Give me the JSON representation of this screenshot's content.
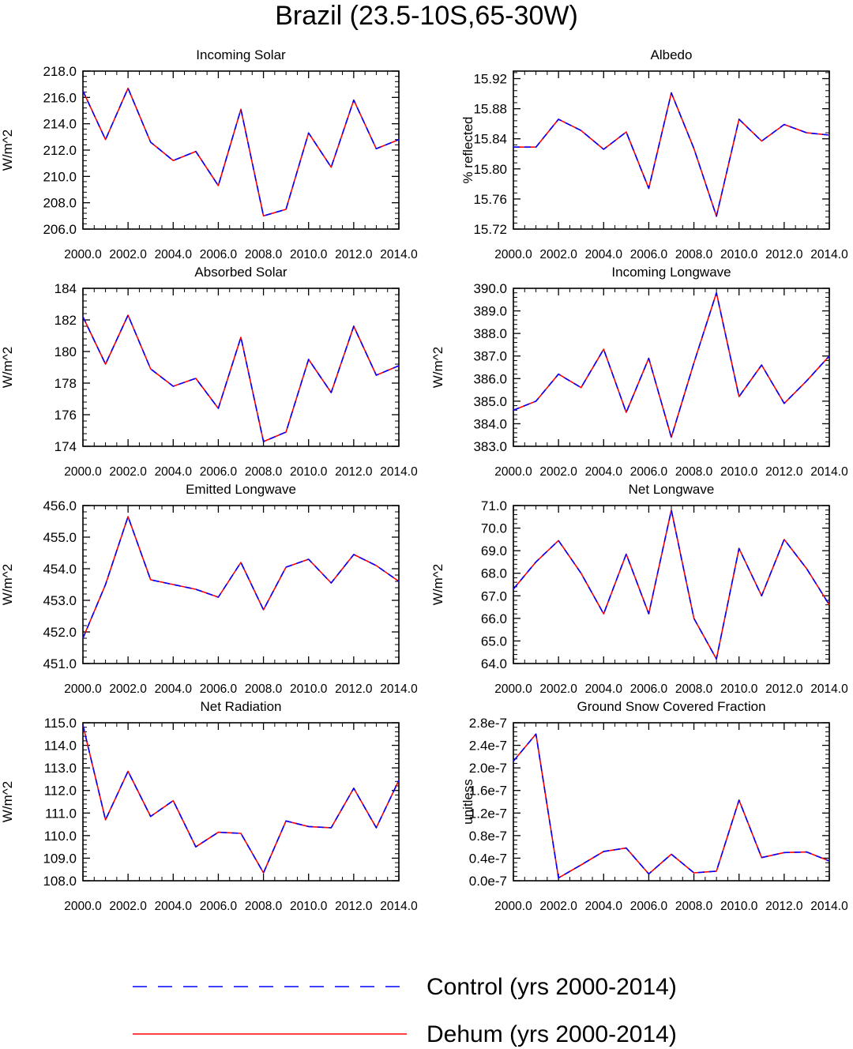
{
  "title": "Brazil (23.5-10S,65-30W)",
  "legend": [
    {
      "label": "Control (yrs 2000-2014)",
      "color": "#0000ff",
      "style": "dashed"
    },
    {
      "label": "Dehum (yrs 2000-2014)",
      "color": "#ff0000",
      "style": "solid"
    }
  ],
  "chart_data": [
    {
      "type": "line",
      "title": "Incoming Solar",
      "ylabel": "W/m^2",
      "x": [
        2000,
        2001,
        2002,
        2003,
        2004,
        2005,
        2006,
        2007,
        2008,
        2009,
        2010,
        2011,
        2012,
        2013,
        2014
      ],
      "xlim": [
        2000,
        2014
      ],
      "xticks": [
        "2000.0",
        "2002.0",
        "2004.0",
        "2006.0",
        "2008.0",
        "2010.0",
        "2012.0",
        "2014.0"
      ],
      "ylim": [
        206.0,
        218.0
      ],
      "yticks": [
        "206.0",
        "208.0",
        "210.0",
        "212.0",
        "214.0",
        "216.0",
        "218.0"
      ],
      "series": [
        {
          "name": "Control (yrs 2000-2014)",
          "values": [
            216.5,
            212.8,
            216.7,
            212.6,
            211.2,
            211.9,
            209.3,
            215.1,
            207.0,
            207.5,
            213.3,
            210.7,
            215.8,
            212.1,
            212.8
          ]
        },
        {
          "name": "Dehum (yrs 2000-2014)",
          "values": [
            216.5,
            212.8,
            216.7,
            212.6,
            211.2,
            211.9,
            209.3,
            215.1,
            207.0,
            207.5,
            213.3,
            210.7,
            215.8,
            212.1,
            212.8
          ]
        }
      ]
    },
    {
      "type": "line",
      "title": "Albedo",
      "ylabel": "% reflected",
      "x": [
        2000,
        2001,
        2002,
        2003,
        2004,
        2005,
        2006,
        2007,
        2008,
        2009,
        2010,
        2011,
        2012,
        2013,
        2014
      ],
      "xlim": [
        2000,
        2014
      ],
      "xticks": [
        "2000.0",
        "2002.0",
        "2004.0",
        "2006.0",
        "2008.0",
        "2010.0",
        "2012.0",
        "2014.0"
      ],
      "ylim": [
        15.72,
        15.93
      ],
      "yticks": [
        "15.72",
        "15.76",
        "15.80",
        "15.84",
        "15.88",
        "15.92"
      ],
      "series": [
        {
          "name": "Control (yrs 2000-2014)",
          "values": [
            15.829,
            15.829,
            15.866,
            15.851,
            15.826,
            15.849,
            15.774,
            15.901,
            15.827,
            15.737,
            15.866,
            15.837,
            15.859,
            15.848,
            15.845
          ]
        },
        {
          "name": "Dehum (yrs 2000-2014)",
          "values": [
            15.829,
            15.829,
            15.866,
            15.851,
            15.826,
            15.849,
            15.774,
            15.901,
            15.827,
            15.737,
            15.866,
            15.837,
            15.859,
            15.848,
            15.845
          ]
        }
      ]
    },
    {
      "type": "line",
      "title": "Absorbed Solar",
      "ylabel": "W/m^2",
      "x": [
        2000,
        2001,
        2002,
        2003,
        2004,
        2005,
        2006,
        2007,
        2008,
        2009,
        2010,
        2011,
        2012,
        2013,
        2014
      ],
      "xlim": [
        2000,
        2014
      ],
      "xticks": [
        "2000.0",
        "2002.0",
        "2004.0",
        "2006.0",
        "2008.0",
        "2010.0",
        "2012.0",
        "2014.0"
      ],
      "ylim": [
        174,
        184
      ],
      "yticks": [
        "174",
        "176",
        "178",
        "180",
        "182",
        "184"
      ],
      "series": [
        {
          "name": "Control (yrs 2000-2014)",
          "values": [
            182.2,
            179.2,
            182.3,
            178.9,
            177.8,
            178.3,
            176.4,
            180.9,
            174.3,
            174.9,
            179.5,
            177.4,
            181.6,
            178.5,
            179.1
          ]
        },
        {
          "name": "Dehum (yrs 2000-2014)",
          "values": [
            182.2,
            179.2,
            182.3,
            178.9,
            177.8,
            178.3,
            176.4,
            180.9,
            174.3,
            174.9,
            179.5,
            177.4,
            181.6,
            178.5,
            179.1
          ]
        }
      ]
    },
    {
      "type": "line",
      "title": "Incoming Longwave",
      "ylabel": "W/m^2",
      "x": [
        2000,
        2001,
        2002,
        2003,
        2004,
        2005,
        2006,
        2007,
        2008,
        2009,
        2010,
        2011,
        2012,
        2013,
        2014
      ],
      "xlim": [
        2000,
        2014
      ],
      "xticks": [
        "2000.0",
        "2002.0",
        "2004.0",
        "2006.0",
        "2008.0",
        "2010.0",
        "2012.0",
        "2014.0"
      ],
      "ylim": [
        383.0,
        390.0
      ],
      "yticks": [
        "383.0",
        "384.0",
        "385.0",
        "386.0",
        "387.0",
        "388.0",
        "389.0",
        "390.0"
      ],
      "series": [
        {
          "name": "Control (yrs 2000-2014)",
          "values": [
            384.6,
            385.0,
            386.2,
            385.6,
            387.3,
            384.5,
            386.9,
            383.4,
            386.7,
            389.8,
            385.2,
            386.6,
            384.9,
            385.9,
            387.0
          ]
        },
        {
          "name": "Dehum (yrs 2000-2014)",
          "values": [
            384.6,
            385.0,
            386.2,
            385.6,
            387.3,
            384.5,
            386.9,
            383.4,
            386.7,
            389.8,
            385.2,
            386.6,
            384.9,
            385.9,
            387.0
          ]
        }
      ]
    },
    {
      "type": "line",
      "title": "Emitted Longwave",
      "ylabel": "W/m^2",
      "x": [
        2000,
        2001,
        2002,
        2003,
        2004,
        2005,
        2006,
        2007,
        2008,
        2009,
        2010,
        2011,
        2012,
        2013,
        2014
      ],
      "xlim": [
        2000,
        2014
      ],
      "xticks": [
        "2000.0",
        "2002.0",
        "2004.0",
        "2006.0",
        "2008.0",
        "2010.0",
        "2012.0",
        "2014.0"
      ],
      "ylim": [
        451.0,
        456.0
      ],
      "yticks": [
        "451.0",
        "452.0",
        "453.0",
        "454.0",
        "455.0",
        "456.0"
      ],
      "series": [
        {
          "name": "Control (yrs 2000-2014)",
          "values": [
            451.8,
            453.5,
            455.65,
            453.65,
            453.5,
            453.35,
            453.1,
            454.2,
            452.7,
            454.05,
            454.3,
            453.55,
            454.45,
            454.1,
            453.6
          ]
        },
        {
          "name": "Dehum (yrs 2000-2014)",
          "values": [
            451.8,
            453.5,
            455.65,
            453.65,
            453.5,
            453.35,
            453.1,
            454.2,
            452.7,
            454.05,
            454.3,
            453.55,
            454.45,
            454.1,
            453.6
          ]
        }
      ]
    },
    {
      "type": "line",
      "title": "Net Longwave",
      "ylabel": "W/m^2",
      "x": [
        2000,
        2001,
        2002,
        2003,
        2004,
        2005,
        2006,
        2007,
        2008,
        2009,
        2010,
        2011,
        2012,
        2013,
        2014
      ],
      "xlim": [
        2000,
        2014
      ],
      "xticks": [
        "2000.0",
        "2002.0",
        "2004.0",
        "2006.0",
        "2008.0",
        "2010.0",
        "2012.0",
        "2014.0"
      ],
      "ylim": [
        64.0,
        71.0
      ],
      "yticks": [
        "64.0",
        "65.0",
        "66.0",
        "67.0",
        "68.0",
        "69.0",
        "70.0",
        "71.0"
      ],
      "series": [
        {
          "name": "Control (yrs 2000-2014)",
          "values": [
            67.3,
            68.5,
            69.45,
            68.0,
            66.2,
            68.85,
            66.2,
            70.8,
            66.0,
            64.2,
            69.1,
            67.0,
            69.5,
            68.2,
            66.6
          ]
        },
        {
          "name": "Dehum (yrs 2000-2014)",
          "values": [
            67.3,
            68.5,
            69.45,
            68.0,
            66.2,
            68.85,
            66.2,
            70.8,
            66.0,
            64.2,
            69.1,
            67.0,
            69.5,
            68.2,
            66.6
          ]
        }
      ]
    },
    {
      "type": "line",
      "title": "Net Radiation",
      "ylabel": "W/m^2",
      "x": [
        2000,
        2001,
        2002,
        2003,
        2004,
        2005,
        2006,
        2007,
        2008,
        2009,
        2010,
        2011,
        2012,
        2013,
        2014
      ],
      "xlim": [
        2000,
        2014
      ],
      "xticks": [
        "2000.0",
        "2002.0",
        "2004.0",
        "2006.0",
        "2008.0",
        "2010.0",
        "2012.0",
        "2014.0"
      ],
      "ylim": [
        108.0,
        115.0
      ],
      "yticks": [
        "108.0",
        "109.0",
        "110.0",
        "111.0",
        "112.0",
        "113.0",
        "114.0",
        "115.0"
      ],
      "series": [
        {
          "name": "Control (yrs 2000-2014)",
          "values": [
            114.9,
            110.7,
            112.85,
            110.85,
            111.55,
            109.5,
            110.15,
            110.1,
            108.35,
            110.65,
            110.4,
            110.35,
            112.1,
            110.35,
            112.45
          ]
        },
        {
          "name": "Dehum (yrs 2000-2014)",
          "values": [
            114.9,
            110.7,
            112.85,
            110.85,
            111.55,
            109.5,
            110.15,
            110.1,
            108.35,
            110.65,
            110.4,
            110.35,
            112.1,
            110.35,
            112.45
          ]
        }
      ]
    },
    {
      "type": "line",
      "title": "Ground Snow Covered Fraction",
      "ylabel": "unitless",
      "x": [
        2000,
        2001,
        2002,
        2003,
        2004,
        2005,
        2006,
        2007,
        2008,
        2009,
        2010,
        2011,
        2012,
        2013,
        2014
      ],
      "xlim": [
        2000,
        2014
      ],
      "xticks": [
        "2000.0",
        "2002.0",
        "2004.0",
        "2006.0",
        "2008.0",
        "2010.0",
        "2012.0",
        "2014.0"
      ],
      "ylim": [
        0.0,
        2.8e-07
      ],
      "yticks": [
        "0.0e-7",
        "0.4e-7",
        "0.8e-7",
        "1.2e-7",
        "1.6e-7",
        "2.0e-7",
        "2.4e-7",
        "2.8e-7"
      ],
      "series": [
        {
          "name": "Control (yrs 2000-2014)",
          "values": [
            2.12e-07,
            2.6e-07,
            5e-09,
            2.8e-08,
            5.2e-08,
            5.8e-08,
            1.2e-08,
            4.7e-08,
            1.4e-08,
            1.7e-08,
            1.43e-07,
            4.1e-08,
            5e-08,
            5.1e-08,
            3.5e-08
          ]
        },
        {
          "name": "Dehum (yrs 2000-2014)",
          "values": [
            2.12e-07,
            2.6e-07,
            5e-09,
            2.8e-08,
            5.2e-08,
            5.8e-08,
            1.2e-08,
            4.7e-08,
            1.4e-08,
            1.7e-08,
            1.43e-07,
            4.1e-08,
            5e-08,
            5.1e-08,
            3.5e-08
          ]
        }
      ]
    }
  ]
}
